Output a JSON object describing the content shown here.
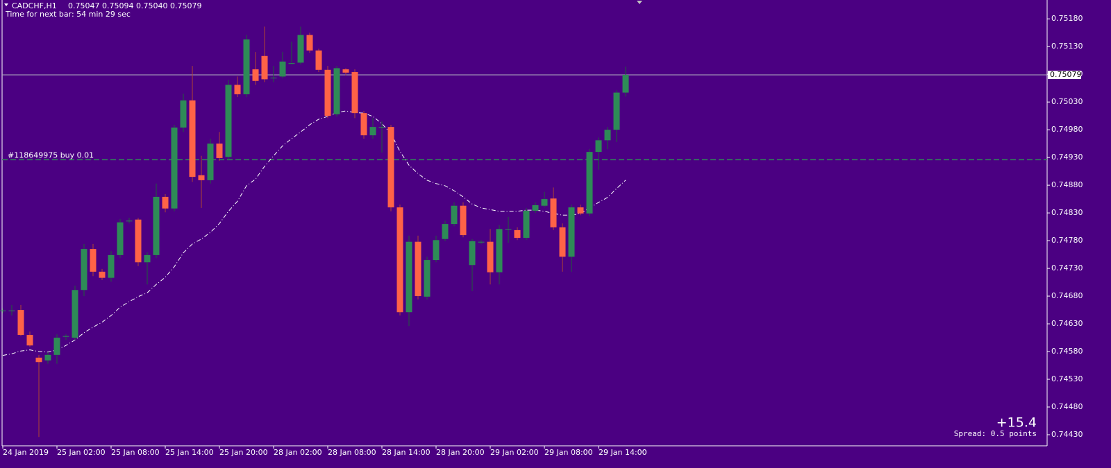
{
  "header": {
    "symbol": "CADCHF,H1",
    "quote": "0.75047 0.75094 0.75040 0.75079",
    "timer": "Time for next bar: 54 min 29 sec"
  },
  "chart_data": {
    "type": "candlestick",
    "categories": [
      "24 Jan 2019",
      null,
      null,
      null,
      null,
      null,
      "25 Jan 02:00",
      null,
      null,
      null,
      null,
      null,
      "25 Jan 08:00",
      null,
      null,
      null,
      null,
      null,
      "25 Jan 14:00",
      null,
      null,
      null,
      null,
      null,
      "25 Jan 20:00",
      null,
      null,
      null,
      null,
      null,
      "28 Jan 02:00",
      null,
      null,
      null,
      null,
      null,
      "28 Jan 08:00",
      null,
      null,
      null,
      null,
      null,
      "28 Jan 14:00",
      null,
      null,
      null,
      null,
      null,
      "28 Jan 20:00",
      null,
      null,
      null,
      null,
      null,
      "29 Jan 02:00",
      null,
      null,
      null,
      null,
      null,
      "29 Jan 08:00",
      null,
      null,
      null,
      null,
      null,
      "29 Jan 14:00",
      null,
      null,
      null
    ],
    "open": [
      0.74654,
      0.74654,
      0.74655,
      0.7461,
      0.74569,
      0.74564,
      0.74574,
      0.74608,
      0.74605,
      0.74691,
      0.74765,
      0.74724,
      0.74713,
      0.74754,
      0.74816,
      0.74818,
      0.74741,
      0.74754,
      0.74859,
      0.74838,
      0.74984,
      0.75033,
      0.74898,
      0.74889,
      0.74955,
      0.74931,
      0.75061,
      0.75044,
      0.75089,
      0.75113,
      0.75074,
      0.75076,
      0.751,
      0.75101,
      0.75151,
      0.75123,
      0.75088,
      0.75008,
      0.75089,
      0.75084,
      0.7501,
      0.7497,
      0.74985,
      0.74985,
      0.7484,
      0.74651,
      0.74778,
      0.74679,
      0.74745,
      0.74783,
      0.7481,
      0.74843,
      0.74736,
      0.74778,
      0.74778,
      0.74723,
      0.74801,
      0.74799,
      0.74785,
      0.74834,
      0.74843,
      0.74856,
      0.74804,
      0.74751,
      0.7484,
      0.74829,
      0.7494,
      0.74961,
      0.7498,
      0.75047
    ],
    "high": [
      0.74658,
      0.74664,
      0.74664,
      0.74616,
      0.74574,
      0.74579,
      0.74611,
      0.74611,
      0.74699,
      0.74774,
      0.74774,
      0.74729,
      0.74761,
      0.74819,
      0.74821,
      0.74821,
      0.74759,
      0.74883,
      0.74864,
      0.74989,
      0.75045,
      0.75095,
      0.74933,
      0.74964,
      0.74976,
      0.7507,
      0.75076,
      0.75151,
      0.7512,
      0.75166,
      0.75095,
      0.7512,
      0.75139,
      0.75166,
      0.75155,
      0.75126,
      0.75095,
      0.75095,
      0.75091,
      0.75089,
      0.75014,
      0.75001,
      0.74995,
      0.74989,
      0.74845,
      0.74789,
      0.74789,
      0.74751,
      0.74789,
      0.74816,
      0.74849,
      0.74849,
      0.74783,
      0.74781,
      0.74801,
      0.74808,
      0.74823,
      0.74804,
      0.74839,
      0.74849,
      0.74868,
      0.74876,
      0.74811,
      0.74845,
      0.74845,
      0.74945,
      0.74966,
      0.74985,
      0.75051,
      0.75094
    ],
    "low": [
      0.74649,
      0.74645,
      0.74608,
      0.74589,
      0.74426,
      0.74558,
      0.74558,
      0.74601,
      0.74601,
      0.7468,
      0.74716,
      0.74709,
      0.74706,
      0.74749,
      0.74811,
      0.74734,
      0.74701,
      0.74749,
      0.74831,
      0.74833,
      0.74976,
      0.74886,
      0.74839,
      0.74883,
      0.74924,
      0.74926,
      0.75039,
      0.75039,
      0.75061,
      0.75066,
      0.75066,
      0.75073,
      0.75098,
      0.75098,
      0.75119,
      0.75084,
      0.75001,
      0.75004,
      0.75078,
      0.75001,
      0.74964,
      0.74964,
      0.74939,
      0.74833,
      0.74645,
      0.74626,
      0.74674,
      0.74674,
      0.74741,
      0.74779,
      0.74806,
      0.74786,
      0.74689,
      0.74774,
      0.74701,
      0.74701,
      0.74776,
      0.74781,
      0.74781,
      0.7483,
      0.7484,
      0.74799,
      0.74724,
      0.74724,
      0.74826,
      0.74824,
      0.74908,
      0.74945,
      0.74958,
      0.7504
    ],
    "close": [
      0.74654,
      0.74654,
      0.7461,
      0.74591,
      0.74561,
      0.74574,
      0.74605,
      0.74608,
      0.74691,
      0.74765,
      0.74724,
      0.74713,
      0.74754,
      0.74813,
      0.74816,
      0.74741,
      0.74754,
      0.74859,
      0.74838,
      0.74984,
      0.75033,
      0.74895,
      0.74889,
      0.74955,
      0.74929,
      0.75061,
      0.75044,
      0.75143,
      0.75068,
      0.75071,
      0.75074,
      0.75103,
      0.751,
      0.75151,
      0.75123,
      0.75088,
      0.75005,
      0.75091,
      0.75083,
      0.7501,
      0.7497,
      0.74985,
      0.74985,
      0.7484,
      0.74651,
      0.74778,
      0.7468,
      0.74745,
      0.74781,
      0.7481,
      0.74843,
      0.7479,
      0.74779,
      0.74778,
      0.74723,
      0.74801,
      0.74801,
      0.74785,
      0.74834,
      0.74844,
      0.74855,
      0.74804,
      0.74751,
      0.7484,
      0.74829,
      0.7494,
      0.74961,
      0.7498,
      0.75047,
      0.75079
    ],
    "up_color": "#2e8b57",
    "down_color": "#ff6347",
    "ma": {
      "color": "#ffffff",
      "values": [
        0.74573,
        0.74576,
        0.74581,
        0.74583,
        0.7458,
        0.74579,
        0.74583,
        0.74591,
        0.74601,
        0.74614,
        0.74624,
        0.74633,
        0.74645,
        0.7466,
        0.7467,
        0.74679,
        0.74686,
        0.74701,
        0.74714,
        0.74733,
        0.74758,
        0.74774,
        0.74783,
        0.74795,
        0.74811,
        0.74833,
        0.74851,
        0.74879,
        0.74891,
        0.74914,
        0.74933,
        0.74951,
        0.74964,
        0.74976,
        0.74989,
        0.74999,
        0.75004,
        0.75011,
        0.75014,
        0.75011,
        0.7501,
        0.75004,
        0.74991,
        0.74973,
        0.74941,
        0.74916,
        0.74901,
        0.74889,
        0.74883,
        0.74879,
        0.7487,
        0.74859,
        0.74846,
        0.74839,
        0.74836,
        0.74833,
        0.74833,
        0.74833,
        0.74835,
        0.74835,
        0.74833,
        0.74829,
        0.74826,
        0.74826,
        0.74829,
        0.74839,
        0.74849,
        0.74858,
        0.74874,
        0.74889
      ]
    },
    "order": {
      "label": "#118649975 buy 0.01",
      "price": 0.74926,
      "color": "#2e8b57"
    },
    "last_price": {
      "value": 0.75079,
      "label": "0.75079"
    },
    "ylim": [
      0.7441,
      0.75214
    ],
    "yticks": [
      {
        "value": 0.7518,
        "label": "0.75180"
      },
      {
        "value": 0.7513,
        "label": "0.75130"
      },
      {
        "value": 0.7508,
        "label": "0.75080"
      },
      {
        "value": 0.7503,
        "label": "0.75030"
      },
      {
        "value": 0.7498,
        "label": "0.74980"
      },
      {
        "value": 0.7493,
        "label": "0.74930"
      },
      {
        "value": 0.7488,
        "label": "0.74880"
      },
      {
        "value": 0.7483,
        "label": "0.74830"
      },
      {
        "value": 0.7478,
        "label": "0.74780"
      },
      {
        "value": 0.7473,
        "label": "0.74730"
      },
      {
        "value": 0.7468,
        "label": "0.74680"
      },
      {
        "value": 0.7463,
        "label": "0.74630"
      },
      {
        "value": 0.7458,
        "label": "0.74580"
      },
      {
        "value": 0.7453,
        "label": "0.74530"
      },
      {
        "value": 0.7448,
        "label": "0.74480"
      },
      {
        "value": 0.7443,
        "label": "0.74430"
      }
    ],
    "grid": false,
    "profit": "+15.4",
    "spread": "Spread: 0.5 points"
  }
}
